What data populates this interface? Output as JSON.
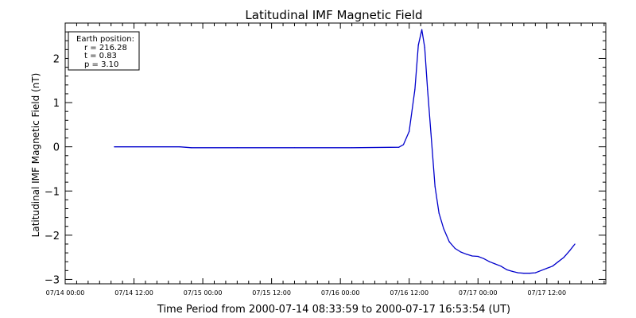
{
  "chart_data": {
    "type": "line",
    "title": "Latitudinal IMF Magnetic Field",
    "ylabel": "Latitudinal IMF Magnetic Field (nT)",
    "xlabel": "Time Period from 2000-07-14 08:33:59 to 2000-07-17 16:53:54 (UT)",
    "x_unit": "hours since 2000-07-14 00:00 UT",
    "xlim": [
      0,
      94.29
    ],
    "ylim": [
      -3.1,
      2.8
    ],
    "yticks": [
      -3,
      -2,
      -1,
      0,
      1,
      2
    ],
    "ytick_labels": [
      "−3",
      "−2",
      "−1",
      "0",
      "1",
      "2"
    ],
    "xticks": [
      0,
      12,
      24,
      36,
      48,
      60,
      72,
      84
    ],
    "xtick_labels": [
      "07/14 00:00",
      "07/14 12:00",
      "07/15 00:00",
      "07/15 12:00",
      "07/16 00:00",
      "07/16 12:00",
      "07/17 00:00",
      "07/17 12:00"
    ],
    "grid": false,
    "line_color": "#0000cc",
    "legend_box": {
      "heading": "Earth position:",
      "lines": [
        "r = 216.28",
        "t = 0.83",
        "p = 3.10"
      ]
    },
    "series": [
      {
        "x": [
          8.57,
          20,
          22,
          30,
          40,
          50,
          58.2,
          59,
          60,
          61,
          61.6,
          62.2,
          62.7,
          63.2,
          63.8,
          64.5,
          65.2,
          66,
          67,
          68,
          69,
          70,
          71,
          72,
          73,
          74,
          75,
          76,
          77,
          78,
          79,
          80,
          81,
          82,
          83,
          84,
          85,
          86,
          87,
          88,
          88.9
        ],
        "y": [
          0.0,
          0.0,
          -0.02,
          -0.02,
          -0.02,
          -0.02,
          -0.01,
          0.05,
          0.35,
          1.3,
          2.3,
          2.65,
          2.25,
          1.3,
          0.3,
          -0.9,
          -1.5,
          -1.85,
          -2.15,
          -2.3,
          -2.38,
          -2.43,
          -2.47,
          -2.48,
          -2.53,
          -2.6,
          -2.65,
          -2.7,
          -2.78,
          -2.82,
          -2.85,
          -2.86,
          -2.86,
          -2.85,
          -2.8,
          -2.75,
          -2.7,
          -2.6,
          -2.5,
          -2.35,
          -2.2
        ]
      }
    ]
  }
}
